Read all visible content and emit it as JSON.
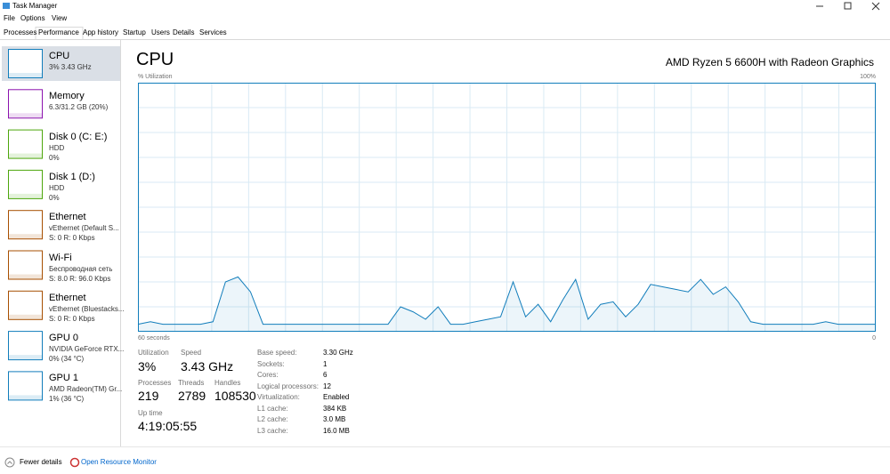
{
  "title_bar": {
    "title": "Task Manager"
  },
  "menu": [
    "File",
    "Options",
    "View"
  ],
  "tabs": [
    "Processes",
    "Performance",
    "App history",
    "Startup",
    "Users",
    "Details",
    "Services"
  ],
  "sidebar": [
    {
      "name": "CPU",
      "lines": [
        "3% 3.43 GHz"
      ],
      "color": "#117dbb"
    },
    {
      "name": "Memory",
      "lines": [
        "6.3/31.2 GB (20%)"
      ],
      "color": "#8b12ae"
    },
    {
      "name": "Disk 0 (C: E:)",
      "lines": [
        "HDD",
        "0%"
      ],
      "color": "#4da60c"
    },
    {
      "name": "Disk 1 (D:)",
      "lines": [
        "HDD",
        "0%"
      ],
      "color": "#4da60c"
    },
    {
      "name": "Ethernet",
      "lines": [
        "vEthernet (Default S...",
        "S: 0 R: 0 Kbps"
      ],
      "color": "#a74f01"
    },
    {
      "name": "Wi-Fi",
      "lines": [
        "Беспроводная сеть",
        "S: 8.0 R: 96.0 Kbps"
      ],
      "color": "#a74f01"
    },
    {
      "name": "Ethernet",
      "lines": [
        "vEthernet (Bluestacks...",
        "S: 0 R: 0 Kbps"
      ],
      "color": "#a74f01"
    },
    {
      "name": "GPU 0",
      "lines": [
        "NVIDIA GeForce RTX...",
        "0% (34 °C)"
      ],
      "color": "#117dbb"
    },
    {
      "name": "GPU 1",
      "lines": [
        "AMD Radeon(TM) Gr...",
        "1% (36 °C)"
      ],
      "color": "#117dbb"
    }
  ],
  "main": {
    "title": "CPU",
    "model": "AMD Ryzen 5 6600H with Radeon Graphics",
    "graph": {
      "type": "line",
      "label": "% Utilization",
      "max_label": "100%",
      "time_label": "60 seconds",
      "min_label": "0",
      "ylim": [
        0,
        100
      ],
      "color": "#117dbb",
      "values": [
        3,
        4,
        3,
        3,
        3,
        3,
        4,
        20,
        22,
        16,
        3,
        3,
        3,
        3,
        3,
        3,
        3,
        3,
        3,
        3,
        3,
        10,
        8,
        5,
        10,
        3,
        3,
        4,
        5,
        6,
        20,
        6,
        11,
        4,
        13,
        21,
        5,
        11,
        12,
        6,
        11,
        19,
        18,
        17,
        16,
        21,
        15,
        18,
        12,
        4,
        3,
        3,
        3,
        3,
        3,
        4,
        3,
        3,
        3,
        3
      ]
    },
    "stats": [
      {
        "label": "Utilization",
        "value": "3%"
      },
      {
        "label": "Speed",
        "value": "3.43 GHz"
      },
      {
        "label": "Processes",
        "value": "219"
      },
      {
        "label": "Threads",
        "value": "2789"
      },
      {
        "label": "Handles",
        "value": "108530"
      },
      {
        "label": "Up time",
        "value": "4:19:05:55"
      }
    ],
    "specs": [
      {
        "label": "Base speed:",
        "value": "3.30 GHz"
      },
      {
        "label": "Sockets:",
        "value": "1"
      },
      {
        "label": "Cores:",
        "value": "6"
      },
      {
        "label": "Logical processors:",
        "value": "12"
      },
      {
        "label": "Virtualization:",
        "value": "Enabled"
      },
      {
        "label": "L1 cache:",
        "value": "384 KB"
      },
      {
        "label": "L2 cache:",
        "value": "3.0 MB"
      },
      {
        "label": "L3 cache:",
        "value": "16.0 MB"
      }
    ]
  },
  "footer": {
    "fewer": "Fewer details",
    "monitor": "Open Resource Monitor"
  }
}
